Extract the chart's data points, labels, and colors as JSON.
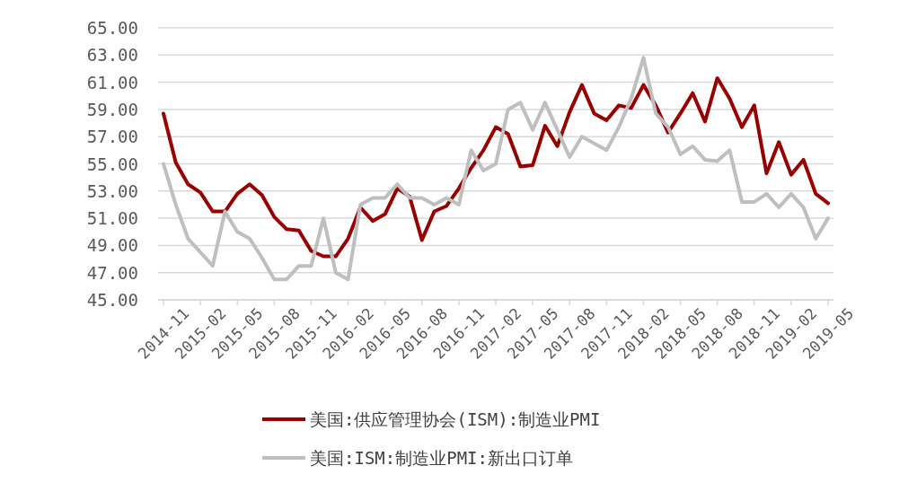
{
  "chart_data": {
    "type": "line",
    "categories": [
      "2014-11",
      null,
      null,
      "2015-02",
      null,
      null,
      "2015-05",
      null,
      null,
      "2015-08",
      null,
      null,
      "2015-11",
      null,
      null,
      "2016-02",
      null,
      null,
      "2016-05",
      null,
      null,
      "2016-08",
      null,
      null,
      "2016-11",
      null,
      null,
      "2017-02",
      null,
      null,
      "2017-05",
      null,
      null,
      "2017-08",
      null,
      null,
      "2017-11",
      null,
      null,
      "2018-02",
      null,
      null,
      "2018-05",
      null,
      null,
      "2018-08",
      null,
      null,
      "2018-11",
      null,
      null,
      "2019-02",
      null,
      null,
      "2019-05"
    ],
    "series": [
      {
        "name": "美国:供应管理协会(ISM):制造业PMI",
        "color": "#990000",
        "values": [
          58.7,
          55.1,
          53.5,
          52.9,
          51.5,
          51.5,
          52.8,
          53.5,
          52.7,
          51.1,
          50.2,
          50.1,
          48.6,
          48.2,
          48.2,
          49.5,
          51.8,
          50.8,
          51.3,
          53.2,
          52.6,
          49.4,
          51.5,
          51.9,
          53.2,
          54.7,
          56.0,
          57.7,
          57.2,
          54.8,
          54.9,
          57.8,
          56.3,
          58.8,
          60.8,
          58.7,
          58.2,
          59.3,
          59.1,
          60.8,
          59.3,
          57.3,
          58.7,
          60.2,
          58.1,
          61.3,
          59.8,
          57.7,
          59.3,
          54.3,
          56.6,
          54.2,
          55.3,
          52.8,
          52.1
        ]
      },
      {
        "name": "美国:ISM:制造业PMI:新出口订单",
        "color": "#bfbfbf",
        "values": [
          55.0,
          52.0,
          49.5,
          48.5,
          47.5,
          51.5,
          50.0,
          49.5,
          48.1,
          46.5,
          46.5,
          47.5,
          47.5,
          51.0,
          47.0,
          46.5,
          52.0,
          52.5,
          52.5,
          53.5,
          52.5,
          52.5,
          52.0,
          52.5,
          52.0,
          56.0,
          54.5,
          55.0,
          59.0,
          59.5,
          57.5,
          59.5,
          57.5,
          55.5,
          57.0,
          56.5,
          56.0,
          57.7,
          59.8,
          62.8,
          58.7,
          57.7,
          55.7,
          56.3,
          55.3,
          55.2,
          56.0,
          52.2,
          52.2,
          52.8,
          51.8,
          52.8,
          51.8,
          49.5,
          51.0
        ]
      }
    ],
    "ylim": [
      45,
      65
    ],
    "yticks": [
      {
        "value": 45,
        "label": "45.00"
      },
      {
        "value": 47,
        "label": "47.00"
      },
      {
        "value": 49,
        "label": "49.00"
      },
      {
        "value": 51,
        "label": "51.00"
      },
      {
        "value": 53,
        "label": "53.00"
      },
      {
        "value": 55,
        "label": "55.00"
      },
      {
        "value": 57,
        "label": "57.00"
      },
      {
        "value": 59,
        "label": "59.00"
      },
      {
        "value": 61,
        "label": "61.00"
      },
      {
        "value": 63,
        "label": "63.00"
      },
      {
        "value": 65,
        "label": "65.00"
      }
    ],
    "grid": "y",
    "legend": "bottom",
    "marker": "none",
    "line_style": "solid"
  }
}
